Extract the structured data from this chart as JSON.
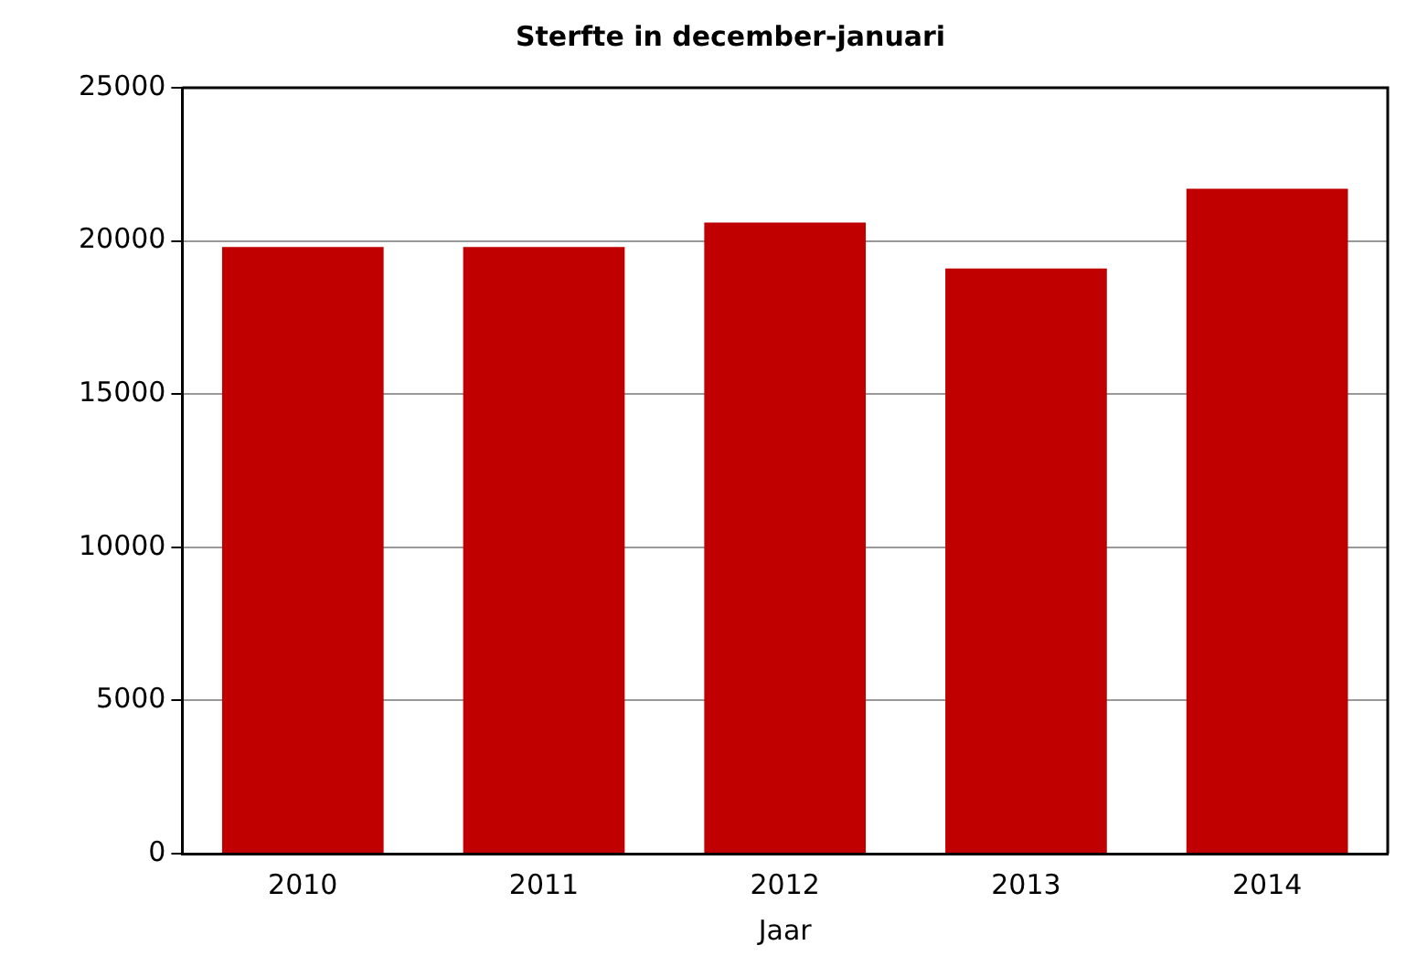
{
  "chart_data": {
    "type": "bar",
    "title": "Sterfte in december-januari",
    "xlabel": "Jaar",
    "categories": [
      "2010",
      "2011",
      "2012",
      "2013",
      "2014"
    ],
    "values": [
      19800,
      19800,
      20600,
      19100,
      21700
    ],
    "color": "#c00000",
    "ylim": [
      0,
      25000
    ],
    "yticks": [
      0,
      5000,
      10000,
      15000,
      20000,
      25000
    ],
    "grid": "y",
    "legend": false
  }
}
